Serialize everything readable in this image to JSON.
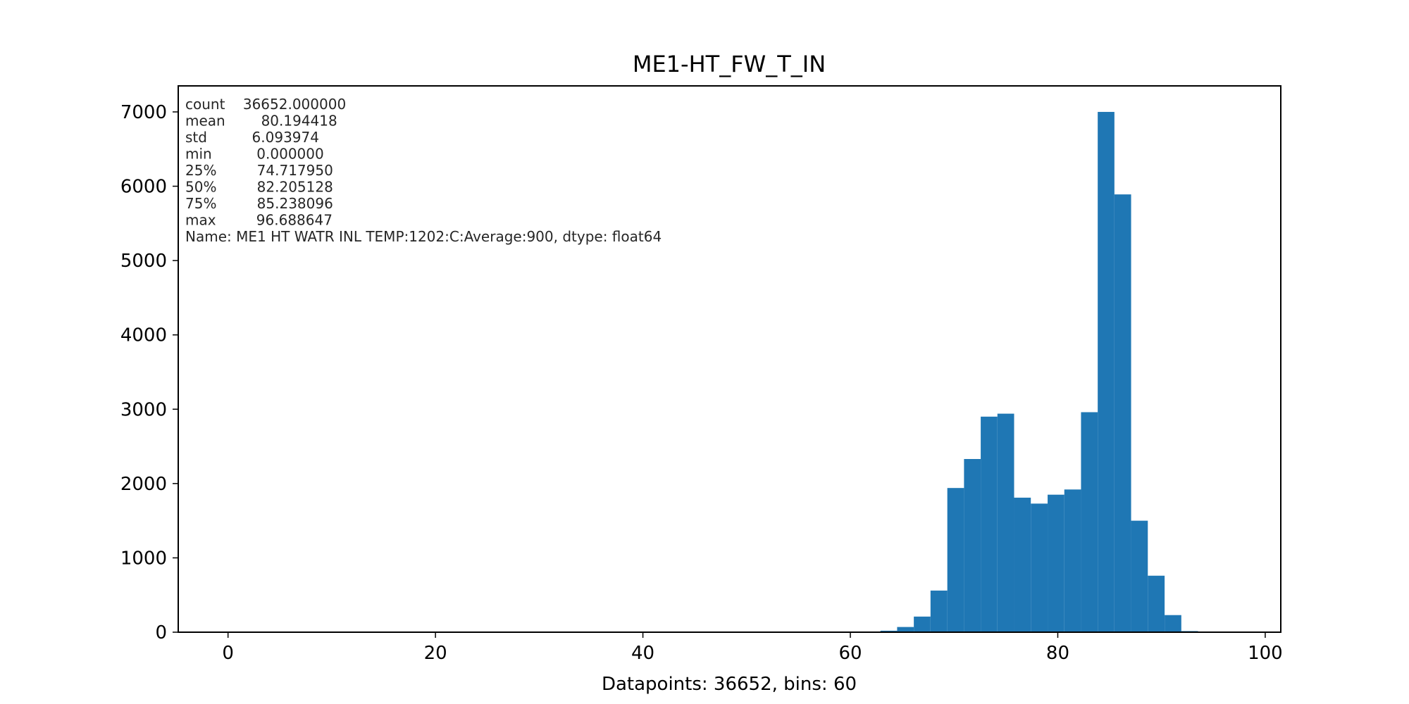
{
  "chart_data": {
    "type": "bar",
    "title": "ME1-HT_FW_T_IN",
    "xlabel": "Datapoints: 36652, bins: 60",
    "ylabel": "",
    "xlim": [
      -4.8,
      101.5
    ],
    "ylim": [
      0,
      7350
    ],
    "x_ticks": [
      0,
      20,
      40,
      60,
      80,
      100
    ],
    "y_ticks": [
      0,
      1000,
      2000,
      3000,
      4000,
      5000,
      6000,
      7000
    ],
    "bar_color": "#1f77b4",
    "bins": [
      {
        "x0": 62.9,
        "x1": 64.51,
        "value": 20
      },
      {
        "x0": 64.51,
        "x1": 66.12,
        "value": 70
      },
      {
        "x0": 66.12,
        "x1": 67.73,
        "value": 210
      },
      {
        "x0": 67.73,
        "x1": 69.35,
        "value": 560
      },
      {
        "x0": 69.35,
        "x1": 70.96,
        "value": 1940
      },
      {
        "x0": 70.96,
        "x1": 72.57,
        "value": 2330
      },
      {
        "x0": 72.57,
        "x1": 74.18,
        "value": 2900
      },
      {
        "x0": 74.18,
        "x1": 75.79,
        "value": 2940
      },
      {
        "x0": 75.79,
        "x1": 77.4,
        "value": 1810
      },
      {
        "x0": 77.4,
        "x1": 79.02,
        "value": 1730
      },
      {
        "x0": 79.02,
        "x1": 80.63,
        "value": 1850
      },
      {
        "x0": 80.63,
        "x1": 82.24,
        "value": 1920
      },
      {
        "x0": 82.24,
        "x1": 83.85,
        "value": 2960
      },
      {
        "x0": 83.85,
        "x1": 85.46,
        "value": 7000
      },
      {
        "x0": 85.46,
        "x1": 87.07,
        "value": 5890
      },
      {
        "x0": 87.07,
        "x1": 88.68,
        "value": 1500
      },
      {
        "x0": 88.68,
        "x1": 90.3,
        "value": 760
      },
      {
        "x0": 90.3,
        "x1": 91.91,
        "value": 230
      },
      {
        "x0": 91.91,
        "x1": 93.52,
        "value": 15
      }
    ],
    "annotation_lines": [
      "count    36652.000000",
      "mean        80.194418",
      "std          6.093974",
      "min          0.000000",
      "25%         74.717950",
      "50%         82.205128",
      "75%         85.238096",
      "max         96.688647",
      "Name: ME1 HT WATR INL TEMP:1202:C:Average:900, dtype: float64"
    ],
    "legend": "none",
    "grid": false
  }
}
